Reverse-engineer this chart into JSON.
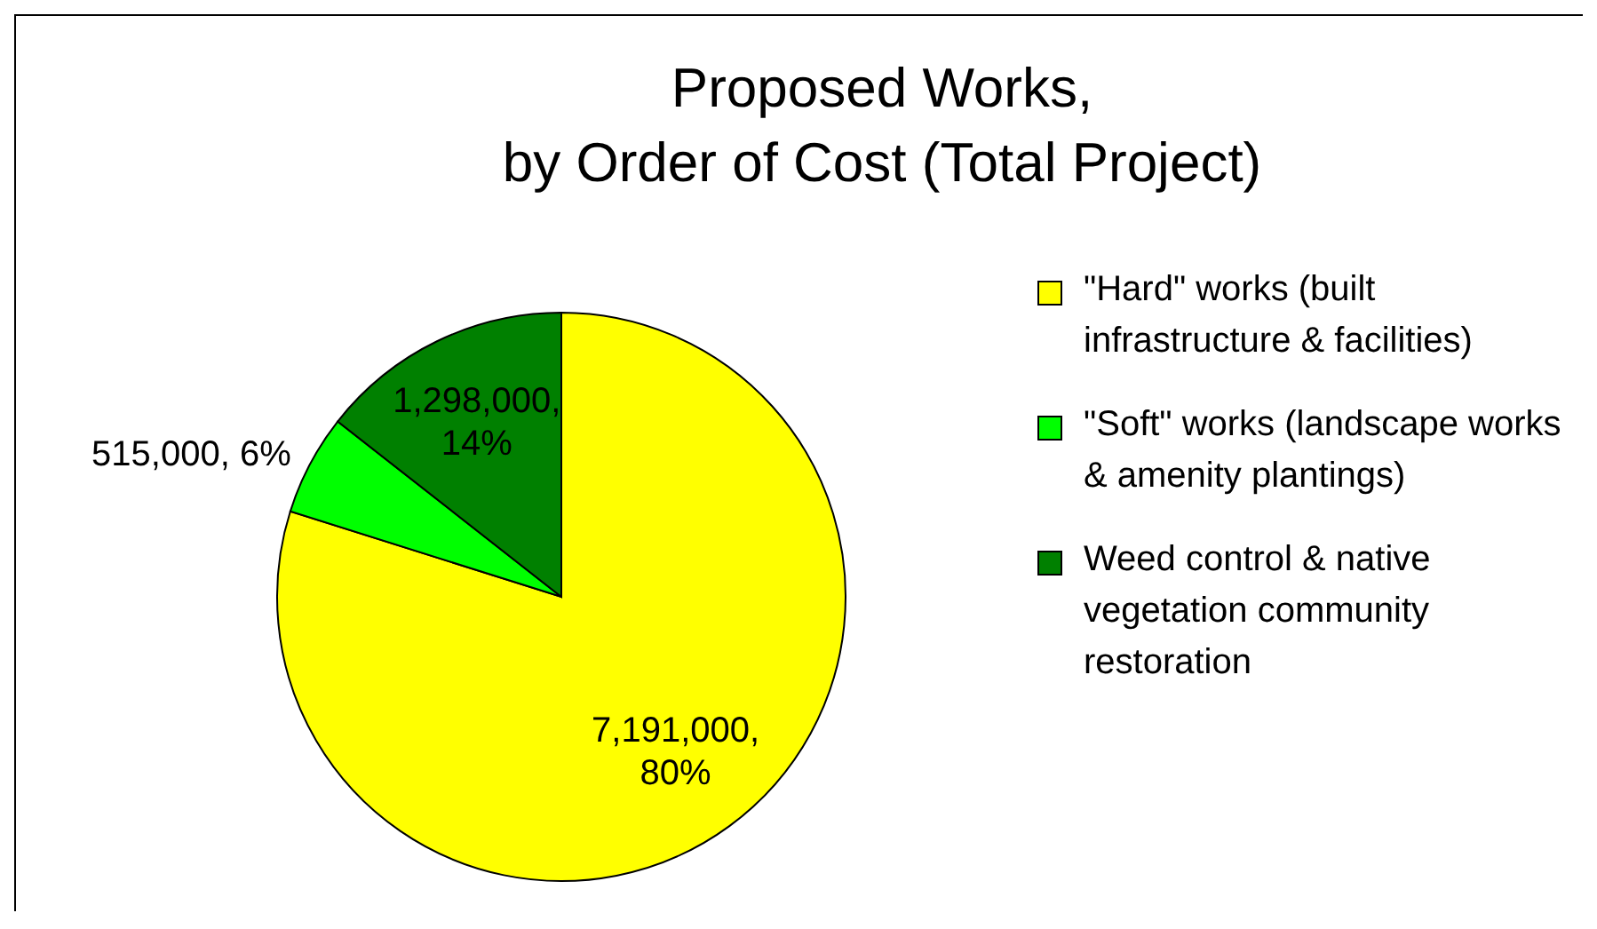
{
  "chart_data": {
    "type": "pie",
    "title": "Proposed Works,\nby Order of Cost (Total Project)",
    "categories": [
      "\"Hard\" works (built infrastructure & facilities)",
      "\"Soft\" works (landscape works & amenity plantings)",
      "Weed control & native vegetation community restoration"
    ],
    "values": [
      7191000,
      515000,
      1298000
    ],
    "colors": [
      "#ffff00",
      "#00ff00",
      "#008000"
    ],
    "value_labels": [
      "7,191,000, 80%",
      "515,000, 6%",
      "1,298,000, 14%"
    ],
    "legend": "right"
  }
}
